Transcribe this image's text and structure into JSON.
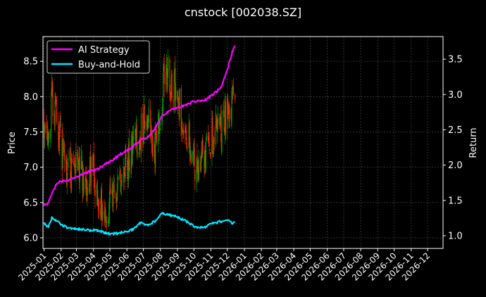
{
  "chart_data": {
    "type": "line",
    "title": "cnstock [002038.SZ]",
    "ylabel_left": "Price",
    "ylabel_right": "Return",
    "xlabel": "",
    "x_tick_labels": [
      "2025-01",
      "2025-02",
      "2025-03",
      "2025-04",
      "2025-05",
      "2025-06",
      "2025-07",
      "2025-08",
      "2025-09",
      "2025-10",
      "2025-11",
      "2025-12",
      "2026-01",
      "2026-02",
      "2026-03",
      "2026-04",
      "2026-05",
      "2026-06",
      "2026-07",
      "2026-08",
      "2026-09",
      "2026-10",
      "2026-11",
      "2026-12"
    ],
    "x_range": [
      "2024-12-30",
      "2026-12-29"
    ],
    "ylim_left": [
      5.85,
      8.85
    ],
    "ylim_right": [
      0.82,
      3.82
    ],
    "y_ticks_left": [
      6.0,
      6.5,
      7.0,
      7.5,
      8.0,
      8.5
    ],
    "y_ticks_left_labels": [
      "6.0",
      "6.5",
      "7.0",
      "7.5",
      "8.0",
      "8.5"
    ],
    "y_ticks_right": [
      1.0,
      1.5,
      2.0,
      2.5,
      3.0,
      3.5
    ],
    "y_ticks_right_labels": [
      "1.0",
      "1.5",
      "2.0",
      "2.5",
      "3.0",
      "3.5"
    ],
    "grid": true,
    "legend": {
      "placement": "top-left",
      "entries": [
        "AI Strategy",
        "Buy-and-Hold"
      ]
    },
    "colors": {
      "background": "#000000",
      "up": "#00a000",
      "down": "#ff2a00",
      "ai_strategy": "#ff00ff",
      "buy_and_hold": "#00e5ff",
      "grid": "#555555"
    },
    "price_anchors": {
      "dates": [
        "2025-01-01",
        "2025-01-08",
        "2025-01-15",
        "2025-01-22",
        "2025-02-01",
        "2025-02-10",
        "2025-02-20",
        "2025-03-01",
        "2025-03-10",
        "2025-03-20",
        "2025-04-01",
        "2025-04-10",
        "2025-04-20",
        "2025-05-01",
        "2025-05-10",
        "2025-05-20",
        "2025-06-01",
        "2025-06-10",
        "2025-06-20",
        "2025-07-01",
        "2025-07-10",
        "2025-07-20",
        "2025-08-01",
        "2025-08-10",
        "2025-08-20",
        "2025-09-01",
        "2025-09-10",
        "2025-09-20",
        "2025-10-01",
        "2025-10-10",
        "2025-10-20",
        "2025-11-01",
        "2025-11-10",
        "2025-11-20",
        "2025-12-01",
        "2025-12-10",
        "2025-12-15"
      ],
      "prices": [
        7.6,
        7.2,
        8.0,
        7.8,
        7.3,
        6.9,
        7.0,
        7.1,
        6.9,
        6.8,
        6.9,
        6.6,
        6.4,
        6.5,
        6.6,
        6.8,
        7.0,
        7.2,
        7.4,
        7.6,
        7.7,
        7.2,
        7.8,
        8.4,
        8.2,
        8.1,
        7.6,
        7.4,
        7.1,
        7.0,
        7.2,
        7.4,
        7.6,
        7.5,
        7.8,
        7.9,
        8.0
      ]
    },
    "series": [
      {
        "name": "AI Strategy",
        "axis": "right",
        "dates": [
          "2025-01-01",
          "2025-01-08",
          "2025-01-15",
          "2025-01-25",
          "2025-02-15",
          "2025-03-01",
          "2025-03-20",
          "2025-04-10",
          "2025-05-01",
          "2025-05-20",
          "2025-06-10",
          "2025-06-25",
          "2025-07-10",
          "2025-07-25",
          "2025-08-05",
          "2025-08-25",
          "2025-09-15",
          "2025-10-01",
          "2025-10-20",
          "2025-11-05",
          "2025-11-20",
          "2025-12-01",
          "2025-12-10",
          "2025-12-15"
        ],
        "values": [
          1.45,
          1.45,
          1.6,
          1.75,
          1.8,
          1.82,
          1.9,
          1.95,
          2.05,
          2.15,
          2.25,
          2.35,
          2.4,
          2.55,
          2.7,
          2.8,
          2.85,
          2.9,
          2.92,
          3.0,
          3.1,
          3.35,
          3.6,
          3.7
        ]
      },
      {
        "name": "Buy-and-Hold",
        "axis": "right",
        "dates": [
          "2025-01-01",
          "2025-01-08",
          "2025-01-15",
          "2025-01-25",
          "2025-02-10",
          "2025-03-01",
          "2025-03-20",
          "2025-04-10",
          "2025-05-01",
          "2025-05-20",
          "2025-06-10",
          "2025-06-25",
          "2025-07-10",
          "2025-07-25",
          "2025-08-05",
          "2025-08-25",
          "2025-09-15",
          "2025-10-01",
          "2025-10-20",
          "2025-11-05",
          "2025-11-20",
          "2025-12-01",
          "2025-12-10",
          "2025-12-15"
        ],
        "values": [
          1.18,
          1.12,
          1.25,
          1.2,
          1.12,
          1.1,
          1.08,
          1.07,
          1.02,
          1.04,
          1.08,
          1.18,
          1.15,
          1.22,
          1.32,
          1.28,
          1.22,
          1.13,
          1.12,
          1.18,
          1.2,
          1.22,
          1.17,
          1.2
        ]
      }
    ]
  }
}
